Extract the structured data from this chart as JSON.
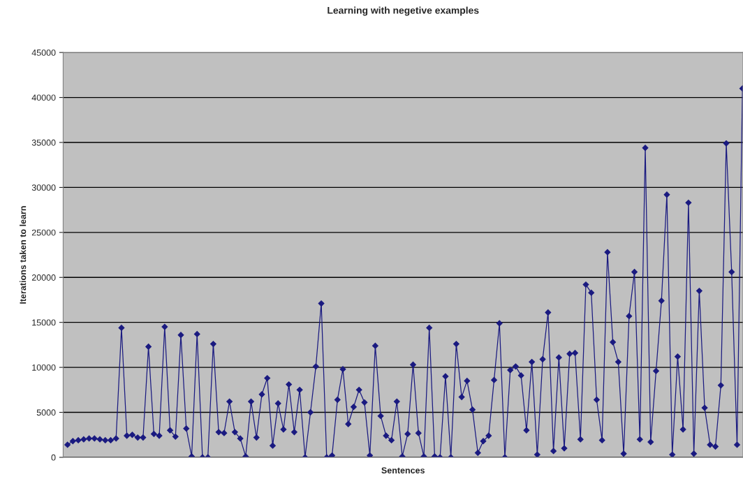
{
  "chart_data": {
    "type": "line",
    "title": "Learning with negetive examples",
    "xlabel": "Sentences",
    "ylabel": "Iterations taken to learn",
    "categories": [
      null,
      null,
      null,
      null,
      null,
      null,
      null,
      null,
      null,
      null,
      null,
      null,
      null,
      null,
      null,
      null,
      null,
      null,
      null,
      null,
      null,
      null,
      null,
      null,
      null,
      null,
      null,
      null,
      null,
      null,
      null,
      null,
      null,
      null,
      null,
      null,
      null,
      null,
      null,
      null,
      null,
      null,
      null,
      null,
      null,
      null,
      null,
      null,
      null,
      null,
      null,
      null,
      null,
      null,
      null,
      null,
      null,
      null,
      null,
      null,
      null,
      null,
      null,
      null,
      null,
      null,
      null,
      null,
      null,
      null,
      null,
      null,
      null,
      null,
      null,
      null,
      null,
      null,
      null,
      null,
      null,
      null,
      null,
      null,
      null,
      null,
      null,
      null,
      null,
      null,
      null,
      null,
      null,
      null,
      null,
      null,
      null,
      null,
      null,
      null,
      null,
      null,
      null,
      null,
      null,
      null,
      null,
      null,
      null,
      null,
      null,
      null,
      null,
      null,
      null,
      null,
      null,
      null,
      null,
      null,
      null,
      null,
      null,
      null,
      null,
      null
    ],
    "series": [
      {
        "color": "#1a1a80",
        "values": [
          1400,
          1800,
          1900,
          2000,
          2100,
          2100,
          2000,
          1900,
          1900,
          2100,
          14400,
          2400,
          2500,
          2200,
          2200,
          12300,
          2600,
          2400,
          14500,
          3000,
          2300,
          13600,
          3200,
          100,
          13700,
          0,
          0,
          12600,
          2800,
          2700,
          6200,
          2800,
          2100,
          100,
          6200,
          2200,
          7000,
          8800,
          1300,
          6000,
          3100,
          8100,
          2800,
          7500,
          0,
          5000,
          10100,
          17100,
          0,
          200,
          6400,
          9800,
          3700,
          5600,
          7500,
          6100,
          200,
          12400,
          4600,
          2400,
          1900,
          6200,
          100,
          2600,
          10300,
          2700,
          100,
          14400,
          100,
          0,
          9000,
          0,
          12600,
          6700,
          8500,
          5300,
          500,
          1800,
          2400,
          8600,
          14900,
          0,
          9700,
          10100,
          9100,
          3000,
          10600,
          300,
          10900,
          16100,
          700,
          11100,
          1000,
          11500,
          11600,
          2000,
          19200,
          18300,
          6400,
          1900,
          22800,
          12800,
          10600,
          400,
          15700,
          20600,
          2000,
          34400,
          1700,
          9600,
          17400,
          29200,
          300,
          11200,
          3100,
          28300,
          400,
          18500,
          5500,
          1400,
          1200,
          8000,
          34900,
          20600,
          1400,
          41000
        ]
      }
    ],
    "ylim": [
      0,
      45000
    ],
    "yticks": [
      0,
      5000,
      10000,
      15000,
      20000,
      25000,
      30000,
      35000,
      40000,
      45000
    ],
    "grid": "y",
    "tick_labels": "y",
    "marker": "diamond",
    "line_style": "solid",
    "legend": false
  }
}
